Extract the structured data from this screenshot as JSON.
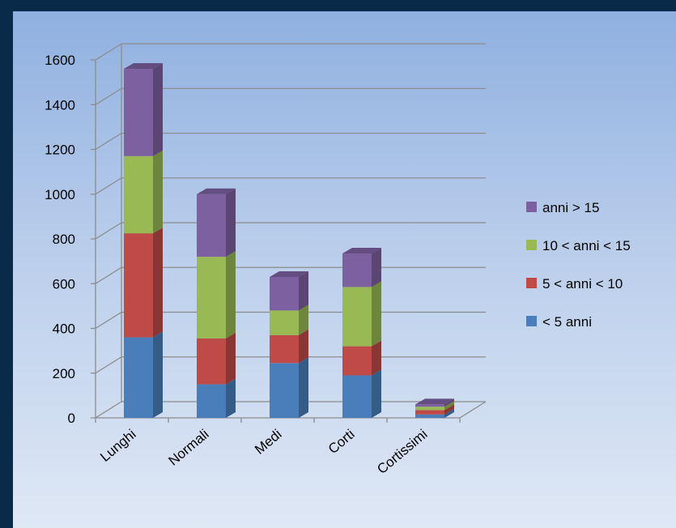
{
  "chart_data": {
    "type": "bar",
    "stacked": true,
    "three_d": true,
    "categories": [
      "Lunghi",
      "Normali",
      "Medi",
      "Corti",
      "Cortissimi"
    ],
    "series": [
      {
        "name": "< 5 anni",
        "color": "#4a7ebb",
        "values": [
          360,
          150,
          245,
          190,
          15
        ]
      },
      {
        "name": "5 < anni < 10",
        "color": "#be4b48",
        "values": [
          465,
          205,
          125,
          130,
          20
        ]
      },
      {
        "name": "10 < anni < 15",
        "color": "#98b954",
        "values": [
          345,
          365,
          110,
          265,
          15
        ]
      },
      {
        "name": "anni > 15",
        "color": "#7d60a0",
        "values": [
          390,
          280,
          150,
          150,
          10
        ]
      }
    ],
    "ylim": [
      0,
      1600
    ],
    "yticks": [
      0,
      200,
      400,
      600,
      800,
      1000,
      1200,
      1400,
      1600
    ],
    "grid": true,
    "legend_position": "right"
  }
}
